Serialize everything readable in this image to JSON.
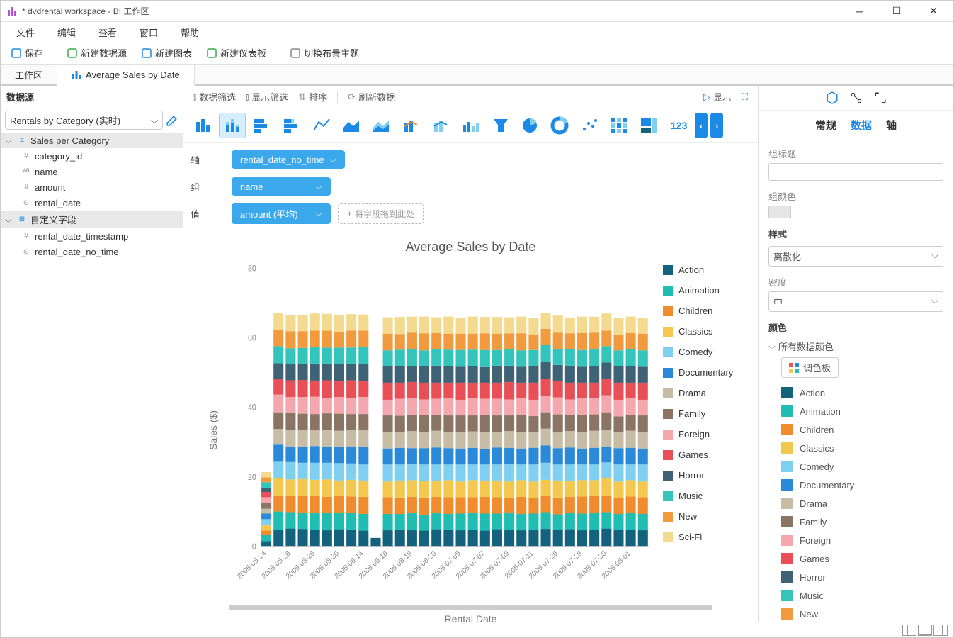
{
  "window": {
    "title": "* dvdrental workspace - BI 工作区"
  },
  "menu": [
    "文件",
    "编辑",
    "查看",
    "窗口",
    "帮助"
  ],
  "toolbar": [
    {
      "label": "保存",
      "icon": "save-icon"
    },
    {
      "label": "新建数据源",
      "icon": "new-datasource-icon"
    },
    {
      "label": "新建图表",
      "icon": "new-chart-icon"
    },
    {
      "label": "新建仪表板",
      "icon": "new-dashboard-icon"
    },
    {
      "label": "切换布景主题",
      "icon": "theme-icon"
    }
  ],
  "tabs": [
    {
      "label": "工作区",
      "active": false
    },
    {
      "label": "Average Sales by Date",
      "active": true,
      "icon": "chart-tab-icon"
    }
  ],
  "left": {
    "title": "数据源",
    "datasource": "Rentals by Category (实时)",
    "groups": [
      {
        "label": "Sales per Category",
        "icon": "dataset-icon",
        "expanded": true,
        "children": [
          {
            "label": "category_id",
            "icon": "hash-icon"
          },
          {
            "label": "name",
            "icon": "abc-icon"
          },
          {
            "label": "amount",
            "icon": "hash-icon"
          },
          {
            "label": "rental_date",
            "icon": "clock-icon"
          }
        ]
      },
      {
        "label": "自定义字段",
        "icon": "custom-icon",
        "expanded": true,
        "children": [
          {
            "label": "rental_date_timestamp",
            "icon": "hash-icon"
          },
          {
            "label": "rental_date_no_time",
            "icon": "clock-icon"
          }
        ]
      }
    ]
  },
  "center_toolbar": {
    "left": [
      "数据筛选",
      "显示筛选",
      "排序",
      "刷新数据"
    ],
    "right": [
      "显示"
    ]
  },
  "chart_types": [
    "bar-v",
    "bar-v-stack",
    "bar-h",
    "bar-h-stack",
    "line",
    "area",
    "area-stack",
    "combo",
    "combo2",
    "dual",
    "funnel",
    "pie",
    "donut",
    "scatter",
    "heatmap",
    "treemap",
    "number"
  ],
  "chart_type_selected": 1,
  "config": {
    "axis": {
      "label": "轴",
      "field": "rental_date_no_time"
    },
    "group": {
      "label": "组",
      "field": "name"
    },
    "value": {
      "label": "值",
      "field": "amount (平均)",
      "placeholder": "将字段拖到此处"
    }
  },
  "chart": {
    "type": "stacked-bar",
    "title": "Average Sales by Date",
    "ylabel": "Sales ($)",
    "xlabel": "Rental Date",
    "ylim": [
      0,
      80
    ],
    "ytick_step": 20,
    "title_fontsize": 18,
    "label_fontsize": 14,
    "background_color": "#ffffff",
    "xticks": [
      "2005-05-24",
      "2005-05-26",
      "2005-05-28",
      "2005-05-30",
      "2005-06-14",
      "2005-06-16",
      "2005-06-18",
      "2005-06-20",
      "2005-07-05",
      "2005-07-07",
      "2005-07-09",
      "2005-07-11",
      "2005-07-26",
      "2005-07-28",
      "2005-07-30",
      "2005-08-01"
    ],
    "series": [
      {
        "name": "Action",
        "color": "#14637e"
      },
      {
        "name": "Animation",
        "color": "#1fbdb2"
      },
      {
        "name": "Children",
        "color": "#f08c2e"
      },
      {
        "name": "Classics",
        "color": "#f4c84e"
      },
      {
        "name": "Comedy",
        "color": "#7fd0f0"
      },
      {
        "name": "Documentary",
        "color": "#2a8ad9"
      },
      {
        "name": "Drama",
        "color": "#c7bda6"
      },
      {
        "name": "Family",
        "color": "#8a7565"
      },
      {
        "name": "Foreign",
        "color": "#f4a7ac"
      },
      {
        "name": "Games",
        "color": "#e94f57"
      },
      {
        "name": "Horror",
        "color": "#3f6275"
      },
      {
        "name": "Music",
        "color": "#33c4bc"
      },
      {
        "name": "New",
        "color": "#f29a3e"
      },
      {
        "name": "Sci-Fi",
        "color": "#f3da8f"
      }
    ],
    "bars": [
      [
        1.5,
        1.8,
        1.2,
        1.5,
        1.8,
        1.6,
        1.4,
        1.7,
        1.6,
        1.5,
        1.2,
        1.6,
        1.4,
        1.5
      ],
      [
        4.8,
        5.2,
        4.6,
        5.0,
        4.7,
        4.9,
        4.5,
        4.8,
        5.1,
        4.6,
        4.4,
        4.9,
        4.7,
        4.8
      ],
      [
        5.1,
        4.7,
        4.8,
        4.6,
        5.0,
        4.5,
        4.7,
        4.9,
        4.6,
        4.8,
        4.7,
        4.5,
        4.9,
        4.7
      ],
      [
        5.0,
        4.6,
        4.8,
        4.9,
        4.7,
        4.5,
        5.0,
        4.6,
        4.8,
        4.9,
        4.5,
        4.7,
        4.8,
        4.7
      ],
      [
        4.8,
        4.7,
        5.0,
        4.6,
        4.9,
        4.8,
        4.5,
        4.7,
        5.0,
        4.6,
        4.9,
        4.8,
        4.7,
        4.9
      ],
      [
        4.6,
        4.9,
        4.7,
        5.0,
        4.8,
        4.6,
        4.9,
        4.7,
        4.5,
        5.0,
        4.8,
        4.6,
        4.9,
        4.8
      ],
      [
        4.9,
        4.7,
        4.8,
        4.5,
        5.0,
        4.7,
        4.6,
        4.9,
        4.8,
        4.5,
        5.0,
        4.7,
        4.6,
        4.8
      ],
      [
        4.7,
        5.0,
        4.6,
        4.8,
        4.7,
        4.9,
        4.8,
        4.5,
        4.7,
        5.0,
        4.6,
        4.8,
        4.9,
        4.7
      ],
      [
        4.5,
        4.8,
        4.9,
        4.7,
        4.6,
        5.0,
        4.8,
        4.7,
        4.9,
        4.6,
        4.8,
        5.0,
        4.7,
        4.6
      ],
      [
        2.4,
        0,
        0,
        0,
        0,
        0,
        0,
        0,
        0,
        0,
        0,
        0,
        0,
        0
      ],
      [
        4.6,
        4.7,
        4.8,
        4.5,
        4.9,
        4.6,
        4.7,
        4.8,
        4.5,
        4.9,
        4.7,
        4.6,
        4.8,
        4.7
      ],
      [
        4.8,
        4.5,
        4.7,
        4.9,
        4.6,
        4.8,
        4.5,
        4.7,
        4.9,
        4.6,
        4.8,
        4.7,
        4.5,
        4.9
      ],
      [
        4.7,
        4.9,
        4.6,
        4.8,
        4.7,
        4.5,
        4.9,
        4.6,
        4.8,
        4.7,
        4.5,
        4.9,
        4.8,
        4.6
      ],
      [
        4.5,
        4.6,
        4.9,
        4.7,
        4.8,
        4.7,
        4.6,
        4.9,
        4.5,
        4.8,
        4.7,
        4.6,
        4.9,
        4.8
      ],
      [
        4.9,
        4.8,
        4.5,
        4.6,
        4.7,
        4.9,
        4.8,
        4.5,
        4.7,
        4.6,
        4.9,
        4.8,
        4.6,
        4.5
      ],
      [
        4.7,
        4.6,
        4.8,
        4.9,
        4.5,
        4.7,
        4.6,
        4.8,
        4.9,
        4.5,
        4.7,
        4.8,
        4.6,
        4.9
      ],
      [
        4.6,
        4.8,
        4.7,
        4.5,
        4.9,
        4.6,
        4.8,
        4.7,
        4.5,
        4.9,
        4.6,
        4.8,
        4.7,
        4.5
      ],
      [
        4.8,
        4.7,
        4.6,
        4.9,
        4.5,
        4.8,
        4.7,
        4.6,
        4.9,
        4.5,
        4.8,
        4.7,
        4.6,
        4.9
      ],
      [
        4.5,
        4.9,
        4.8,
        4.7,
        4.6,
        4.5,
        4.9,
        4.8,
        4.7,
        4.6,
        4.5,
        4.9,
        4.8,
        4.7
      ],
      [
        4.9,
        4.5,
        4.7,
        4.8,
        4.6,
        4.9,
        4.5,
        4.7,
        4.8,
        4.6,
        4.9,
        4.5,
        4.7,
        4.8
      ],
      [
        4.7,
        4.8,
        4.5,
        4.6,
        5.0,
        4.7,
        4.8,
        4.5,
        4.6,
        5.0,
        4.7,
        4.8,
        4.5,
        4.6
      ],
      [
        4.6,
        4.7,
        4.9,
        4.8,
        4.5,
        4.6,
        4.7,
        4.9,
        4.8,
        4.5,
        4.6,
        4.7,
        4.9,
        4.8
      ],
      [
        4.8,
        4.6,
        4.5,
        4.7,
        4.9,
        4.8,
        4.6,
        4.5,
        4.7,
        4.9,
        4.8,
        4.6,
        4.5,
        4.7
      ],
      [
        5.0,
        4.8,
        4.7,
        4.6,
        4.9,
        5.0,
        4.8,
        4.7,
        4.6,
        4.9,
        5.0,
        4.8,
        4.7,
        4.6
      ],
      [
        4.7,
        4.5,
        4.8,
        4.9,
        4.6,
        4.7,
        4.5,
        5.2,
        4.9,
        4.6,
        4.7,
        4.5,
        4.8,
        4.9
      ],
      [
        4.9,
        4.7,
        4.6,
        4.5,
        4.8,
        4.9,
        4.7,
        4.6,
        4.5,
        4.8,
        4.9,
        4.7,
        4.6,
        4.5
      ],
      [
        4.6,
        4.8,
        4.9,
        4.7,
        4.5,
        4.6,
        4.8,
        4.9,
        4.7,
        4.5,
        4.6,
        4.8,
        4.9,
        4.7
      ],
      [
        4.8,
        4.9,
        4.7,
        4.6,
        4.5,
        4.8,
        4.9,
        4.7,
        4.6,
        4.5,
        4.8,
        4.9,
        4.7,
        4.6
      ],
      [
        5.1,
        4.7,
        4.8,
        4.9,
        4.6,
        4.5,
        4.7,
        5.2,
        4.9,
        4.6,
        4.8,
        4.7,
        4.5,
        4.9
      ],
      [
        4.7,
        4.6,
        4.5,
        4.8,
        4.9,
        4.7,
        4.6,
        4.5,
        4.8,
        4.9,
        4.7,
        4.6,
        4.5,
        4.8
      ],
      [
        4.8,
        4.9,
        4.6,
        4.7,
        4.5,
        4.8,
        4.9,
        4.6,
        4.7,
        4.5,
        4.8,
        4.9,
        4.6,
        4.7
      ],
      [
        4.6,
        4.7,
        4.8,
        4.5,
        4.9,
        4.6,
        4.7,
        4.8,
        4.5,
        4.9,
        4.6,
        4.7,
        4.8,
        4.5
      ]
    ]
  },
  "right": {
    "tabs": [
      "常规",
      "数据",
      "轴"
    ],
    "active_tab": "数据",
    "group_title_label": "组标题",
    "group_title_value": "",
    "group_color_label": "组颜色",
    "style_label": "样式",
    "style_value": "离散化",
    "density_label": "密度",
    "density_value": "中",
    "color_label": "颜色",
    "all_colors_label": "所有数据颜色",
    "palette_label": "调色板"
  }
}
